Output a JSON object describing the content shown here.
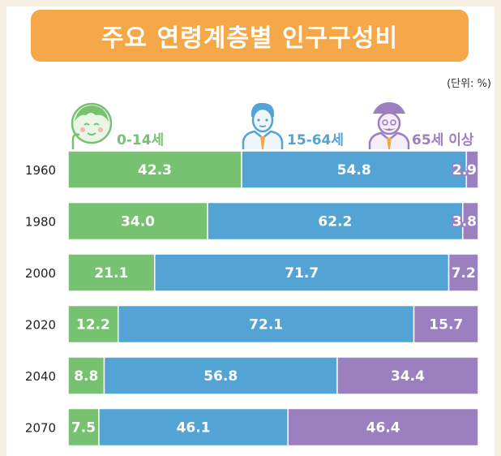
{
  "title": "주요 연령계층별 인구구성비",
  "unit": "(단위: %)",
  "colors": {
    "young": "#77c270",
    "working": "#53a3d5",
    "elderly": "#9b7fbf",
    "title_bg": "#f4a84a"
  },
  "legend": [
    {
      "key": "young",
      "label": "0-14세",
      "icon": "baby-icon"
    },
    {
      "key": "working",
      "label": "15-64세",
      "icon": "adult-icon"
    },
    {
      "key": "elderly",
      "label": "65세 이상",
      "icon": "elder-icon"
    }
  ],
  "chart_data": {
    "type": "bar",
    "orientation": "horizontal-stacked-100",
    "title": "주요 연령계층별 인구구성비",
    "unit": "(단위: %)",
    "categories": [
      "1960",
      "1980",
      "2000",
      "2020",
      "2040",
      "2070"
    ],
    "series": [
      {
        "name": "0-14세",
        "values": [
          42.3,
          34.0,
          21.1,
          12.2,
          8.8,
          7.5
        ]
      },
      {
        "name": "15-64세",
        "values": [
          54.8,
          62.2,
          71.7,
          72.1,
          56.8,
          46.1
        ]
      },
      {
        "name": "65세 이상",
        "values": [
          2.9,
          3.8,
          7.2,
          15.7,
          34.4,
          46.4
        ]
      }
    ],
    "labels": [
      [
        "42.3",
        "54.8",
        "2.9"
      ],
      [
        "34.0",
        "62.2",
        "3.8"
      ],
      [
        "21.1",
        "71.7",
        "7.2"
      ],
      [
        "12.2",
        "72.1",
        "15.7"
      ],
      [
        "8.8",
        "56.8",
        "34.4"
      ],
      [
        "7.5",
        "46.1",
        "46.4"
      ]
    ],
    "xlim": [
      0,
      100
    ]
  }
}
